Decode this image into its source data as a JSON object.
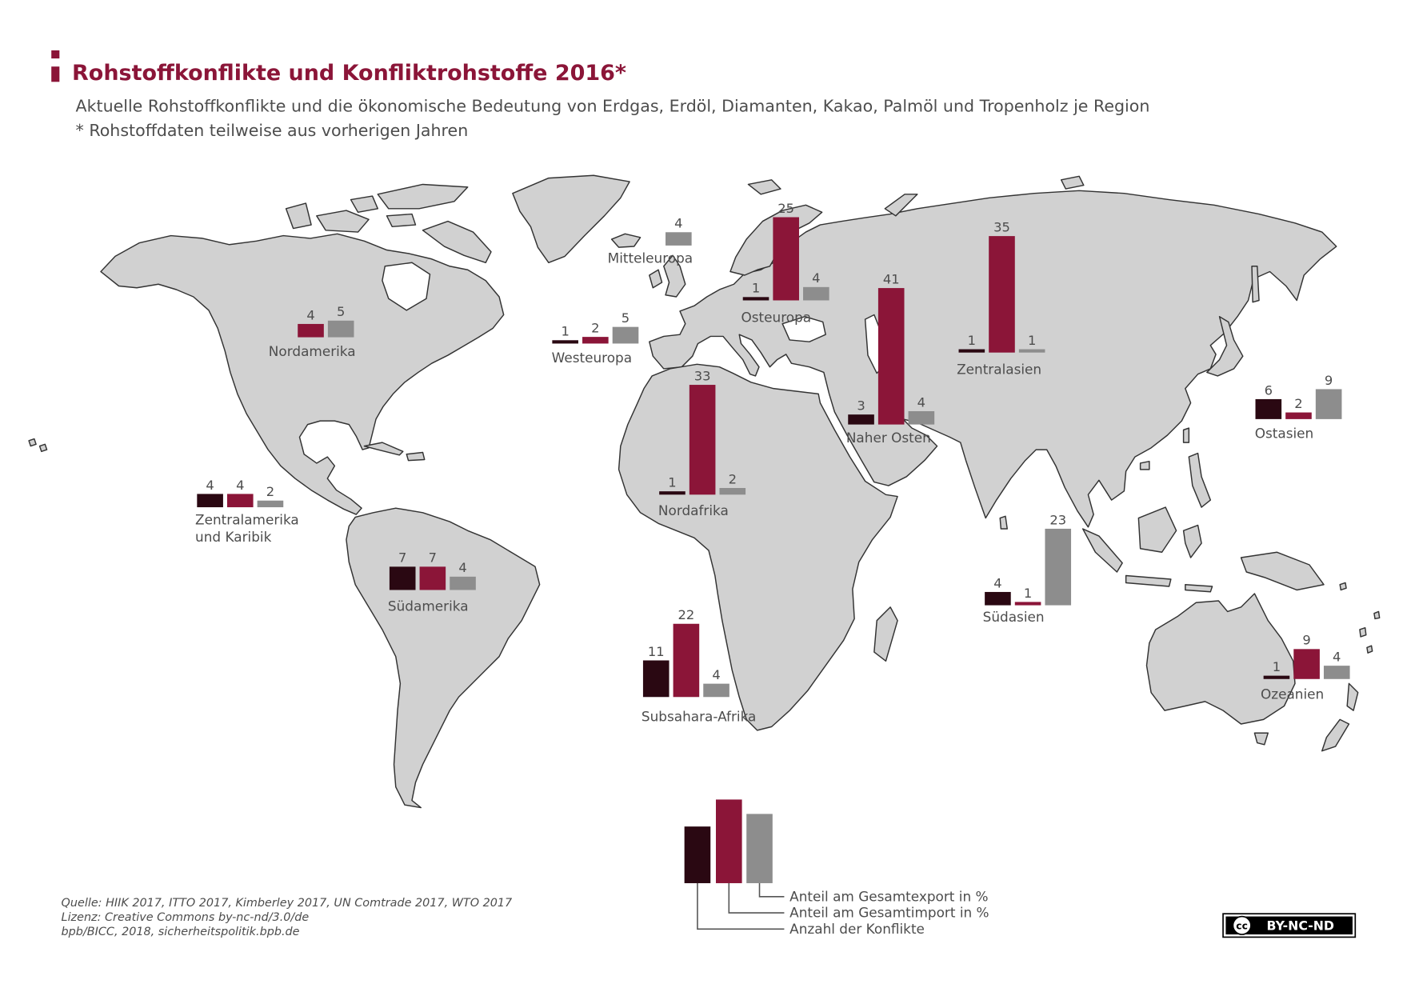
{
  "title": "Rohstoffkonflikte und Konfliktrohstoffe 2016*",
  "subtitle": "Aktuelle Rohstoffkonflikte und die ökonomische Bedeutung von Erdgas, Erdöl, Diamanten, Kakao, Palmöl und Tropenholz je Region",
  "note": "* Rohstoffdaten teilweise aus vorherigen Jahren",
  "colors": {
    "accent": "#8b1538",
    "land": "#d1d1d1",
    "coastline": "#333333",
    "text": "#4d4d4d"
  },
  "chart_data": {
    "type": "bar",
    "series": [
      {
        "name": "Anzahl der Konflikte",
        "color": "#2a0812"
      },
      {
        "name": "Anteil am Gesamtimport in %",
        "color": "#8b1538"
      },
      {
        "name": "Anteil am Gesamtexport in %",
        "color": "#8d8d8d"
      }
    ],
    "regions": [
      {
        "name_lines": [
          "Nordamerika"
        ],
        "values": [
          null,
          4,
          5
        ]
      },
      {
        "name_lines": [
          "Westeuropa"
        ],
        "values": [
          1,
          2,
          5
        ]
      },
      {
        "name_lines": [
          "Mitteleuropa"
        ],
        "values": [
          null,
          null,
          4
        ]
      },
      {
        "name_lines": [
          "Osteuropa"
        ],
        "values": [
          1,
          25,
          4
        ]
      },
      {
        "name_lines": [
          "Naher Osten"
        ],
        "values": [
          3,
          41,
          4
        ]
      },
      {
        "name_lines": [
          "Zentralasien"
        ],
        "values": [
          1,
          35,
          1
        ]
      },
      {
        "name_lines": [
          "Ostasien"
        ],
        "values": [
          6,
          2,
          9
        ]
      },
      {
        "name_lines": [
          "Nordafrika"
        ],
        "values": [
          1,
          33,
          2
        ]
      },
      {
        "name_lines": [
          "Zentralamerika",
          "und Karibik"
        ],
        "values": [
          4,
          4,
          2
        ]
      },
      {
        "name_lines": [
          "Südamerika"
        ],
        "values": [
          7,
          7,
          4
        ]
      },
      {
        "name_lines": [
          "Subsahara-Afrika"
        ],
        "values": [
          11,
          22,
          4
        ]
      },
      {
        "name_lines": [
          "Südasien"
        ],
        "values": [
          4,
          1,
          23
        ]
      },
      {
        "name_lines": [
          "Ozeanien"
        ],
        "values": [
          1,
          9,
          4
        ]
      }
    ]
  },
  "source": {
    "line1": "Quelle: HIIK 2017, ITTO 2017, Kimberley 2017, UN Comtrade 2017, WTO 2017",
    "line2": "Lizenz: Creative Commons by-nc-nd/3.0/de",
    "line3": "bpb/BICC, 2018, sicherheitspolitik.bpb.de"
  },
  "license_badge": {
    "symbol": "cc",
    "label": "BY-NC-ND"
  }
}
